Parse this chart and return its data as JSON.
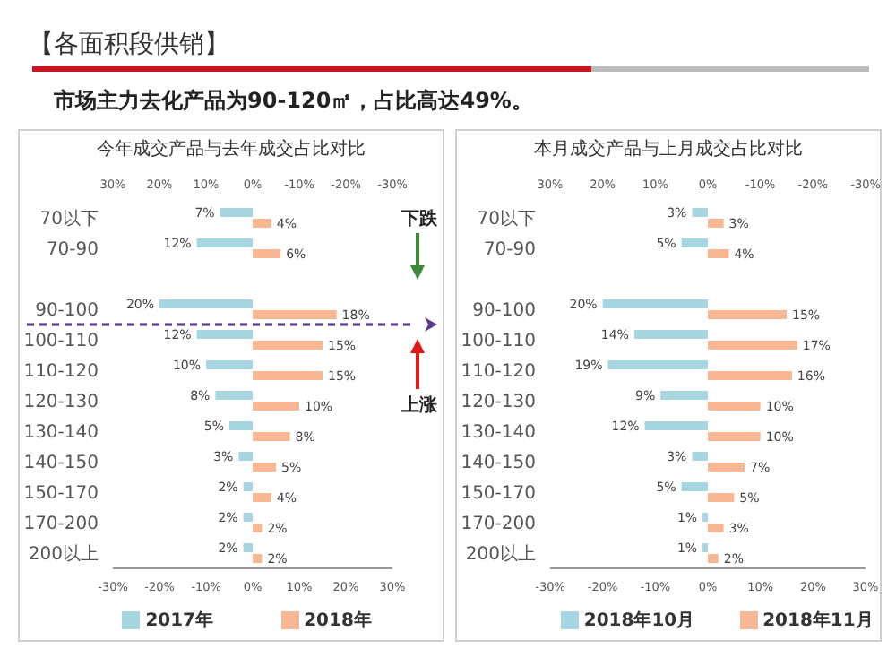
{
  "chart_data": [
    {
      "type": "other",
      "title": "【各面积段供销】",
      "subtitle": "市场主力去化产品为90-120㎡，占比高达49%。"
    },
    {
      "type": "bar",
      "orientation": "horizontal",
      "title": "今年成交产品与去年成交占比对比",
      "categories": [
        "70以下",
        "70-90",
        null,
        "90-100",
        "100-110",
        "110-120",
        "120-130",
        "130-140",
        "140-150",
        "150-170",
        "170-200",
        "200以上"
      ],
      "series": [
        {
          "name": "2017年",
          "color": "#a6d7e1",
          "axis": "x2",
          "values": [
            7,
            12,
            null,
            20,
            12,
            10,
            8,
            5,
            3,
            2,
            2,
            2
          ],
          "value_labels": [
            "7%",
            "12%",
            null,
            "20%",
            "12%",
            "10%",
            "8%",
            "5%",
            "3%",
            "2%",
            "2%",
            "2%"
          ]
        },
        {
          "name": "2018年",
          "color": "#f6b792",
          "values": [
            4,
            6,
            null,
            18,
            15,
            15,
            10,
            8,
            5,
            4,
            2,
            2
          ],
          "value_labels": [
            "4%",
            "6%",
            null,
            "18%",
            "15%",
            "15%",
            "10%",
            "8%",
            "5%",
            "4%",
            "2%",
            "2%"
          ]
        }
      ],
      "xlim": [
        -30,
        30
      ],
      "xticks": [
        {
          "value": -30,
          "label": "-30%"
        },
        {
          "value": -20,
          "label": "-20%"
        },
        {
          "value": -10,
          "label": "-10%"
        },
        {
          "value": 0,
          "label": "0%"
        },
        {
          "value": 10,
          "label": "10%"
        },
        {
          "value": 20,
          "label": "20%"
        },
        {
          "value": 30,
          "label": "30%"
        }
      ],
      "x2lim": [
        30,
        -30
      ],
      "x2ticks": [
        {
          "value": 30,
          "label": "30%"
        },
        {
          "value": 20,
          "label": "20%"
        },
        {
          "value": 10,
          "label": "10%"
        },
        {
          "value": 0,
          "label": "0%"
        },
        {
          "value": -10,
          "label": "-10%"
        },
        {
          "value": -20,
          "label": "-20%"
        },
        {
          "value": -30,
          "label": "-30%"
        }
      ],
      "legend": "bottom",
      "annotations": [
        "下跌",
        "上涨"
      ]
    },
    {
      "type": "bar",
      "orientation": "horizontal",
      "title": "本月成交产品与上月成交占比对比",
      "categories": [
        "70以下",
        "70-90",
        null,
        "90-100",
        "100-110",
        "110-120",
        "120-130",
        "130-140",
        "140-150",
        "150-170",
        "170-200",
        "200以上"
      ],
      "series": [
        {
          "name": "2018年10月",
          "color": "#a6d7e1",
          "axis": "x2",
          "values": [
            3,
            5,
            null,
            20,
            14,
            19,
            9,
            12,
            3,
            5,
            1,
            1
          ],
          "value_labels": [
            "3%",
            "5%",
            null,
            "20%",
            "14%",
            "19%",
            "9%",
            "12%",
            "3%",
            "5%",
            "1%",
            "1%"
          ]
        },
        {
          "name": "2018年11月",
          "color": "#f6b792",
          "values": [
            3,
            4,
            null,
            15,
            17,
            16,
            10,
            10,
            7,
            5,
            3,
            2
          ],
          "value_labels": [
            "3%",
            "4%",
            null,
            "15%",
            "17%",
            "16%",
            "10%",
            "10%",
            "7%",
            "5%",
            "3%",
            "2%"
          ]
        }
      ],
      "xlim": [
        -30,
        30
      ],
      "xticks": [
        {
          "value": -30,
          "label": "-30%"
        },
        {
          "value": -20,
          "label": "-20%"
        },
        {
          "value": -10,
          "label": "-10%"
        },
        {
          "value": 0,
          "label": "0%"
        },
        {
          "value": 10,
          "label": "10%"
        },
        {
          "value": 20,
          "label": "20%"
        },
        {
          "value": 30,
          "label": "30%"
        }
      ],
      "x2lim": [
        30,
        -30
      ],
      "x2ticks": [
        {
          "value": 30,
          "label": "30%"
        },
        {
          "value": 20,
          "label": "20%"
        },
        {
          "value": 10,
          "label": "10%"
        },
        {
          "value": 0,
          "label": "0%"
        },
        {
          "value": -10,
          "label": "-10%"
        },
        {
          "value": -20,
          "label": "-20%"
        },
        {
          "value": -30,
          "label": "-30%"
        }
      ],
      "legend": "bottom"
    }
  ]
}
